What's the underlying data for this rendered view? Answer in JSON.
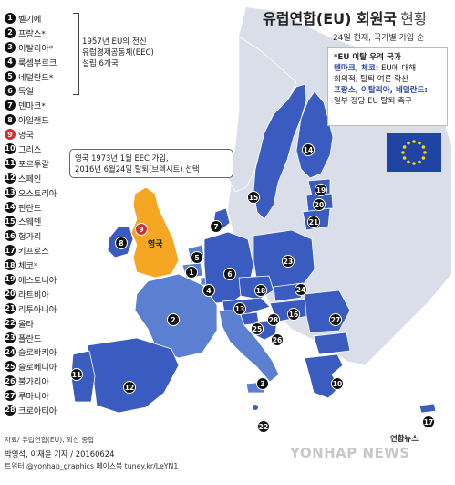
{
  "title": "유럽연합(EU) 회원국",
  "title_suffix": "현황",
  "subtitle": "24일 현재, 국가별 가입 순",
  "members": [
    {
      "no": "1",
      "name": "벨기에"
    },
    {
      "no": "2",
      "name": "프랑스*"
    },
    {
      "no": "3",
      "name": "이탈리아*"
    },
    {
      "no": "4",
      "name": "룩셈부르크"
    },
    {
      "no": "5",
      "name": "네덜란드*"
    },
    {
      "no": "6",
      "name": "독일"
    },
    {
      "no": "7",
      "name": "덴마크*"
    },
    {
      "no": "8",
      "name": "아일랜드"
    },
    {
      "no": "9",
      "name": "영국"
    },
    {
      "no": "10",
      "name": "그리스"
    },
    {
      "no": "11",
      "name": "포르투갈"
    },
    {
      "no": "12",
      "name": "스페인"
    },
    {
      "no": "13",
      "name": "오스트리아"
    },
    {
      "no": "14",
      "name": "핀란드"
    },
    {
      "no": "15",
      "name": "스웨덴"
    },
    {
      "no": "16",
      "name": "헝가리"
    },
    {
      "no": "17",
      "name": "키프로스"
    },
    {
      "no": "18",
      "name": "체코*"
    },
    {
      "no": "19",
      "name": "에스토니아"
    },
    {
      "no": "20",
      "name": "라트비아"
    },
    {
      "no": "21",
      "name": "리투아니아"
    },
    {
      "no": "22",
      "name": "몰타"
    },
    {
      "no": "23",
      "name": "폴란드"
    },
    {
      "no": "24",
      "name": "슬로바키아"
    },
    {
      "no": "25",
      "name": "슬로베니아"
    },
    {
      "no": "26",
      "name": "불가리아"
    },
    {
      "no": "27",
      "name": "루마니아"
    },
    {
      "no": "28",
      "name": "크로아티아"
    }
  ],
  "founders_note": [
    "1957년 EU의 전신",
    "유럽경제공동체(EEC)",
    "설립 6개국"
  ],
  "uk_callout": [
    "영국 1973년 1월 EEC 가입,",
    "2016년 6월24일 탈퇴(브렉시트) 선택"
  ],
  "uk_map_label": "영국",
  "concern": {
    "heading": "*EU 이탈 우려 국가",
    "line1_hl": "덴마크, 체코:",
    "line1_rest": " EU에 대해",
    "line2": "회의적, 탈퇴 여론 확산",
    "line3_hl": "프랑스, 이탈리아, 네덜란드:",
    "line4": "일부 정당 EU 탈퇴 촉구"
  },
  "source": "자료/ 유럽연합(EU), 외신 종합",
  "credit": "박영석, 이재윤 기자 / 20160624",
  "credit2": "트위터 @yonhap_graphics  페이스북 tuney.kr/LeYN1",
  "logo_text": "연합뉴스",
  "watermark": "YONHAP NEWS",
  "map_numbers": [
    "1",
    "2",
    "3",
    "4",
    "5",
    "6",
    "7",
    "8",
    "9",
    "10",
    "11",
    "12",
    "13",
    "14",
    "15",
    "16",
    "17",
    "18",
    "19",
    "20",
    "21",
    "22",
    "23",
    "24",
    "25",
    "26",
    "27",
    "28"
  ],
  "colors": {
    "member": "#3a5bbf",
    "founder": "#5b7fd1",
    "uk": "#f5a623",
    "non_member": "#d9dee8",
    "sea": "#ffffff",
    "highlight_red": "#d32f2f",
    "concern_blue": "#1f3f9c"
  }
}
